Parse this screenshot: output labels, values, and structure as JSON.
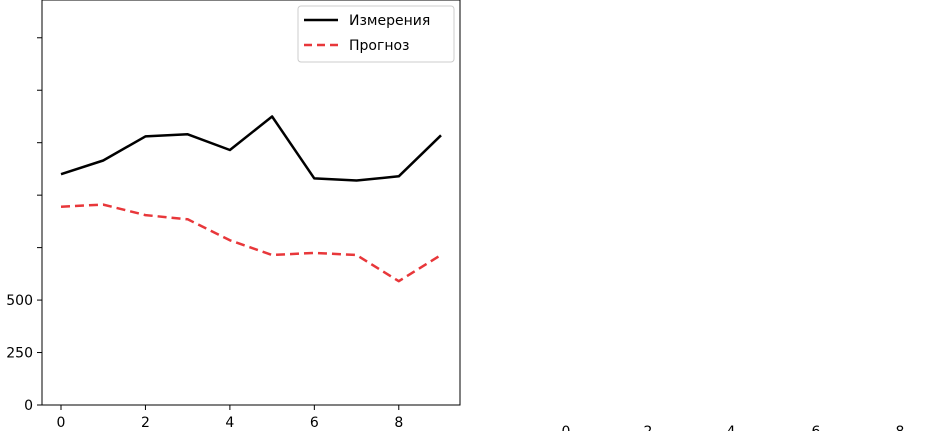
{
  "chart_data": {
    "type": "line",
    "title": "",
    "xlabel": "",
    "ylabel": "",
    "x": [
      0,
      1,
      2,
      3,
      4,
      5,
      6,
      7,
      8,
      9
    ],
    "xlim": [
      -0.45,
      9.45
    ],
    "ylim": [
      0,
      1930
    ],
    "xticks": [
      0,
      2,
      4,
      6,
      8
    ],
    "xtick_labels": [
      "0",
      "2",
      "4",
      "6",
      "8"
    ],
    "yticks": [
      0,
      250,
      500,
      750,
      1000,
      1250,
      1500,
      1750
    ],
    "ytick_labels": [
      "0",
      "250",
      "500",
      "",
      "",
      "",
      "",
      ""
    ],
    "grid": false,
    "legend_placement": "upper-right",
    "series": [
      {
        "name": "Измерения",
        "color": "#000000",
        "style": "solid",
        "values": [
          1100,
          1165,
          1280,
          1290,
          1215,
          1375,
          1080,
          1070,
          1090,
          1285
        ]
      },
      {
        "name": "Прогноз",
        "color": "#e8373a",
        "style": "dashed",
        "values": [
          945,
          955,
          905,
          885,
          785,
          715,
          725,
          715,
          590,
          715
        ]
      }
    ],
    "adjacent_panel_xtick_labels": [
      "0",
      "2",
      "4",
      "6",
      "8"
    ]
  }
}
